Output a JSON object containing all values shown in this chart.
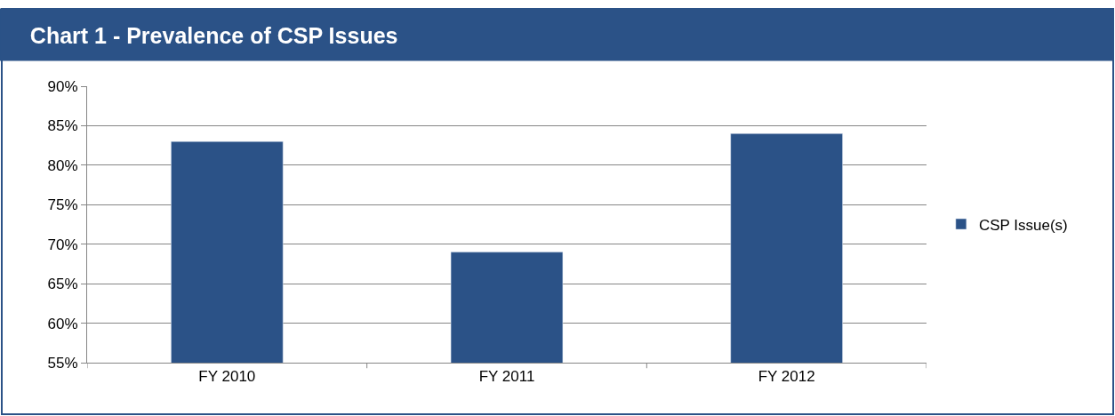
{
  "chart_data": {
    "type": "bar",
    "title": "Chart 1 - Prevalence of CSP Issues",
    "categories": [
      "FY 2010",
      "FY 2011",
      "FY 2012"
    ],
    "series": [
      {
        "name": "CSP Issue(s)",
        "color": "#2b5287",
        "values": [
          83,
          69,
          84
        ]
      }
    ],
    "ylim": [
      55,
      90
    ],
    "yticks": [
      {
        "value": 55,
        "label": "55%"
      },
      {
        "value": 60,
        "label": "60%"
      },
      {
        "value": 65,
        "label": "65%"
      },
      {
        "value": 70,
        "label": "70%"
      },
      {
        "value": 75,
        "label": "75%"
      },
      {
        "value": 80,
        "label": "80%"
      },
      {
        "value": 85,
        "label": "85%"
      },
      {
        "value": 90,
        "label": "90%"
      }
    ],
    "grid": "y",
    "legend": "right"
  }
}
